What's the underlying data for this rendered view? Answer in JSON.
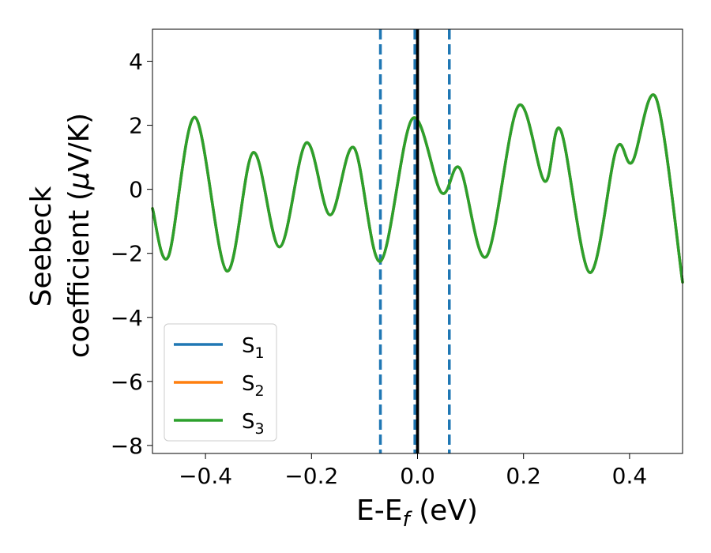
{
  "chart_data": {
    "type": "line",
    "xlabel": "E-E",
    "xlabel_sub": "f",
    "xlabel_unit": " (eV)",
    "ylabel_line1": "Seebeck",
    "ylabel_line2": "coefficient  (",
    "ylabel_mu": "μ",
    "ylabel_unit": "V/K)",
    "xlim": [
      -0.5,
      0.5
    ],
    "ylim": [
      -8.25,
      5.0
    ],
    "xticks": [
      -0.4,
      -0.2,
      0.0,
      0.2,
      0.4
    ],
    "xtick_labels": [
      "−0.4",
      "−0.2",
      "0.0",
      "0.2",
      "0.4"
    ],
    "yticks": [
      -8,
      -6,
      -4,
      -2,
      0,
      2,
      4
    ],
    "ytick_labels": [
      "−8",
      "−6",
      "−4",
      "−2",
      "0",
      "2",
      "4"
    ],
    "legend_position": "lower-left",
    "grid": false,
    "vertical_lines": [
      {
        "x": -0.07,
        "style": "dashed",
        "color": "#1f77b4"
      },
      {
        "x": -0.005,
        "style": "dashed",
        "color": "#1f77b4"
      },
      {
        "x": 0.06,
        "style": "dashed",
        "color": "#1f77b4"
      },
      {
        "x": 0.0,
        "style": "solid",
        "color": "#000000"
      }
    ],
    "x": [
      -0.5,
      -0.47,
      -0.42,
      -0.36,
      -0.31,
      -0.26,
      -0.21,
      -0.165,
      -0.12,
      -0.07,
      -0.01,
      0.045,
      0.08,
      0.13,
      0.19,
      0.24,
      0.27,
      0.325,
      0.375,
      0.405,
      0.45,
      0.5
    ],
    "series": [
      {
        "name": "S",
        "sub": "1",
        "color": "#1f77b4",
        "values": [
          -0.6,
          -2.1,
          2.25,
          -2.55,
          1.15,
          -1.8,
          1.45,
          -0.8,
          1.3,
          -2.25,
          2.2,
          -0.1,
          0.65,
          -2.1,
          2.6,
          0.25,
          1.85,
          -2.6,
          1.25,
          0.85,
          2.85,
          -2.9
        ]
      },
      {
        "name": "S",
        "sub": "2",
        "color": "#ff7f0e",
        "values": [
          -0.6,
          -2.1,
          2.25,
          -2.55,
          1.15,
          -1.8,
          1.45,
          -0.8,
          1.3,
          -2.25,
          2.2,
          -0.1,
          0.65,
          -2.1,
          2.6,
          0.25,
          1.85,
          -2.6,
          1.25,
          0.85,
          2.85,
          -2.9
        ]
      },
      {
        "name": "S",
        "sub": "3",
        "color": "#2ca02c",
        "values": [
          -0.6,
          -2.1,
          2.25,
          -2.55,
          1.15,
          -1.8,
          1.45,
          -0.8,
          1.3,
          -2.25,
          2.2,
          -0.1,
          0.65,
          -2.1,
          2.6,
          0.25,
          1.85,
          -2.6,
          1.25,
          0.85,
          2.85,
          -2.9
        ]
      }
    ]
  }
}
